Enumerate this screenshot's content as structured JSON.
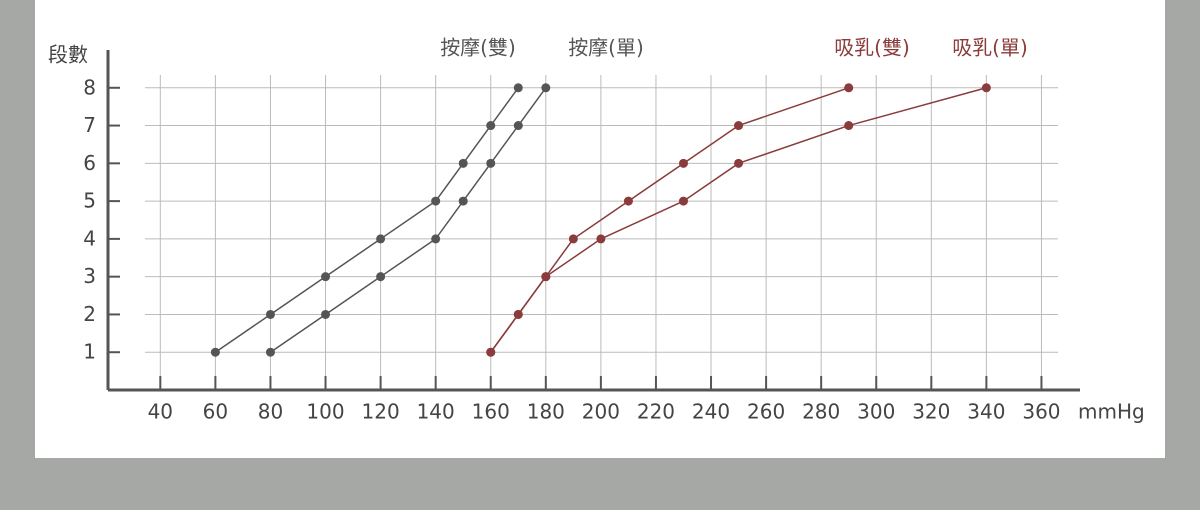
{
  "chart_data": {
    "type": "line",
    "y_label": "段數",
    "x_label": "mmHg",
    "xlim": [
      21,
      374
    ],
    "ylim": [
      0,
      9
    ],
    "xticks": [
      40,
      60,
      80,
      100,
      120,
      140,
      160,
      180,
      200,
      220,
      240,
      260,
      280,
      300,
      320,
      340,
      360
    ],
    "yticks": [
      1,
      2,
      3,
      4,
      5,
      6,
      7,
      8
    ],
    "grid": true,
    "series": [
      {
        "name": "按摩(雙)",
        "color": "#555555",
        "x": [
          60,
          80,
          100,
          120,
          140,
          150,
          160,
          170
        ],
        "values": [
          1,
          2,
          3,
          4,
          5,
          6,
          7,
          8
        ]
      },
      {
        "name": "按摩(單)",
        "color": "#555555",
        "x": [
          80,
          100,
          120,
          140,
          150,
          160,
          170,
          180
        ],
        "values": [
          1,
          2,
          3,
          4,
          5,
          6,
          7,
          8
        ]
      },
      {
        "name": "吸乳(雙)",
        "color": "#8a3b3b",
        "x": [
          160,
          170,
          180,
          190,
          210,
          230,
          250,
          290
        ],
        "values": [
          1,
          2,
          3,
          4,
          5,
          6,
          7,
          8
        ]
      },
      {
        "name": "吸乳(單)",
        "color": "#8a3b3b",
        "x": [
          160,
          170,
          180,
          200,
          230,
          250,
          290,
          340
        ],
        "values": [
          1,
          2,
          3,
          4,
          5,
          6,
          7,
          8
        ]
      }
    ]
  }
}
